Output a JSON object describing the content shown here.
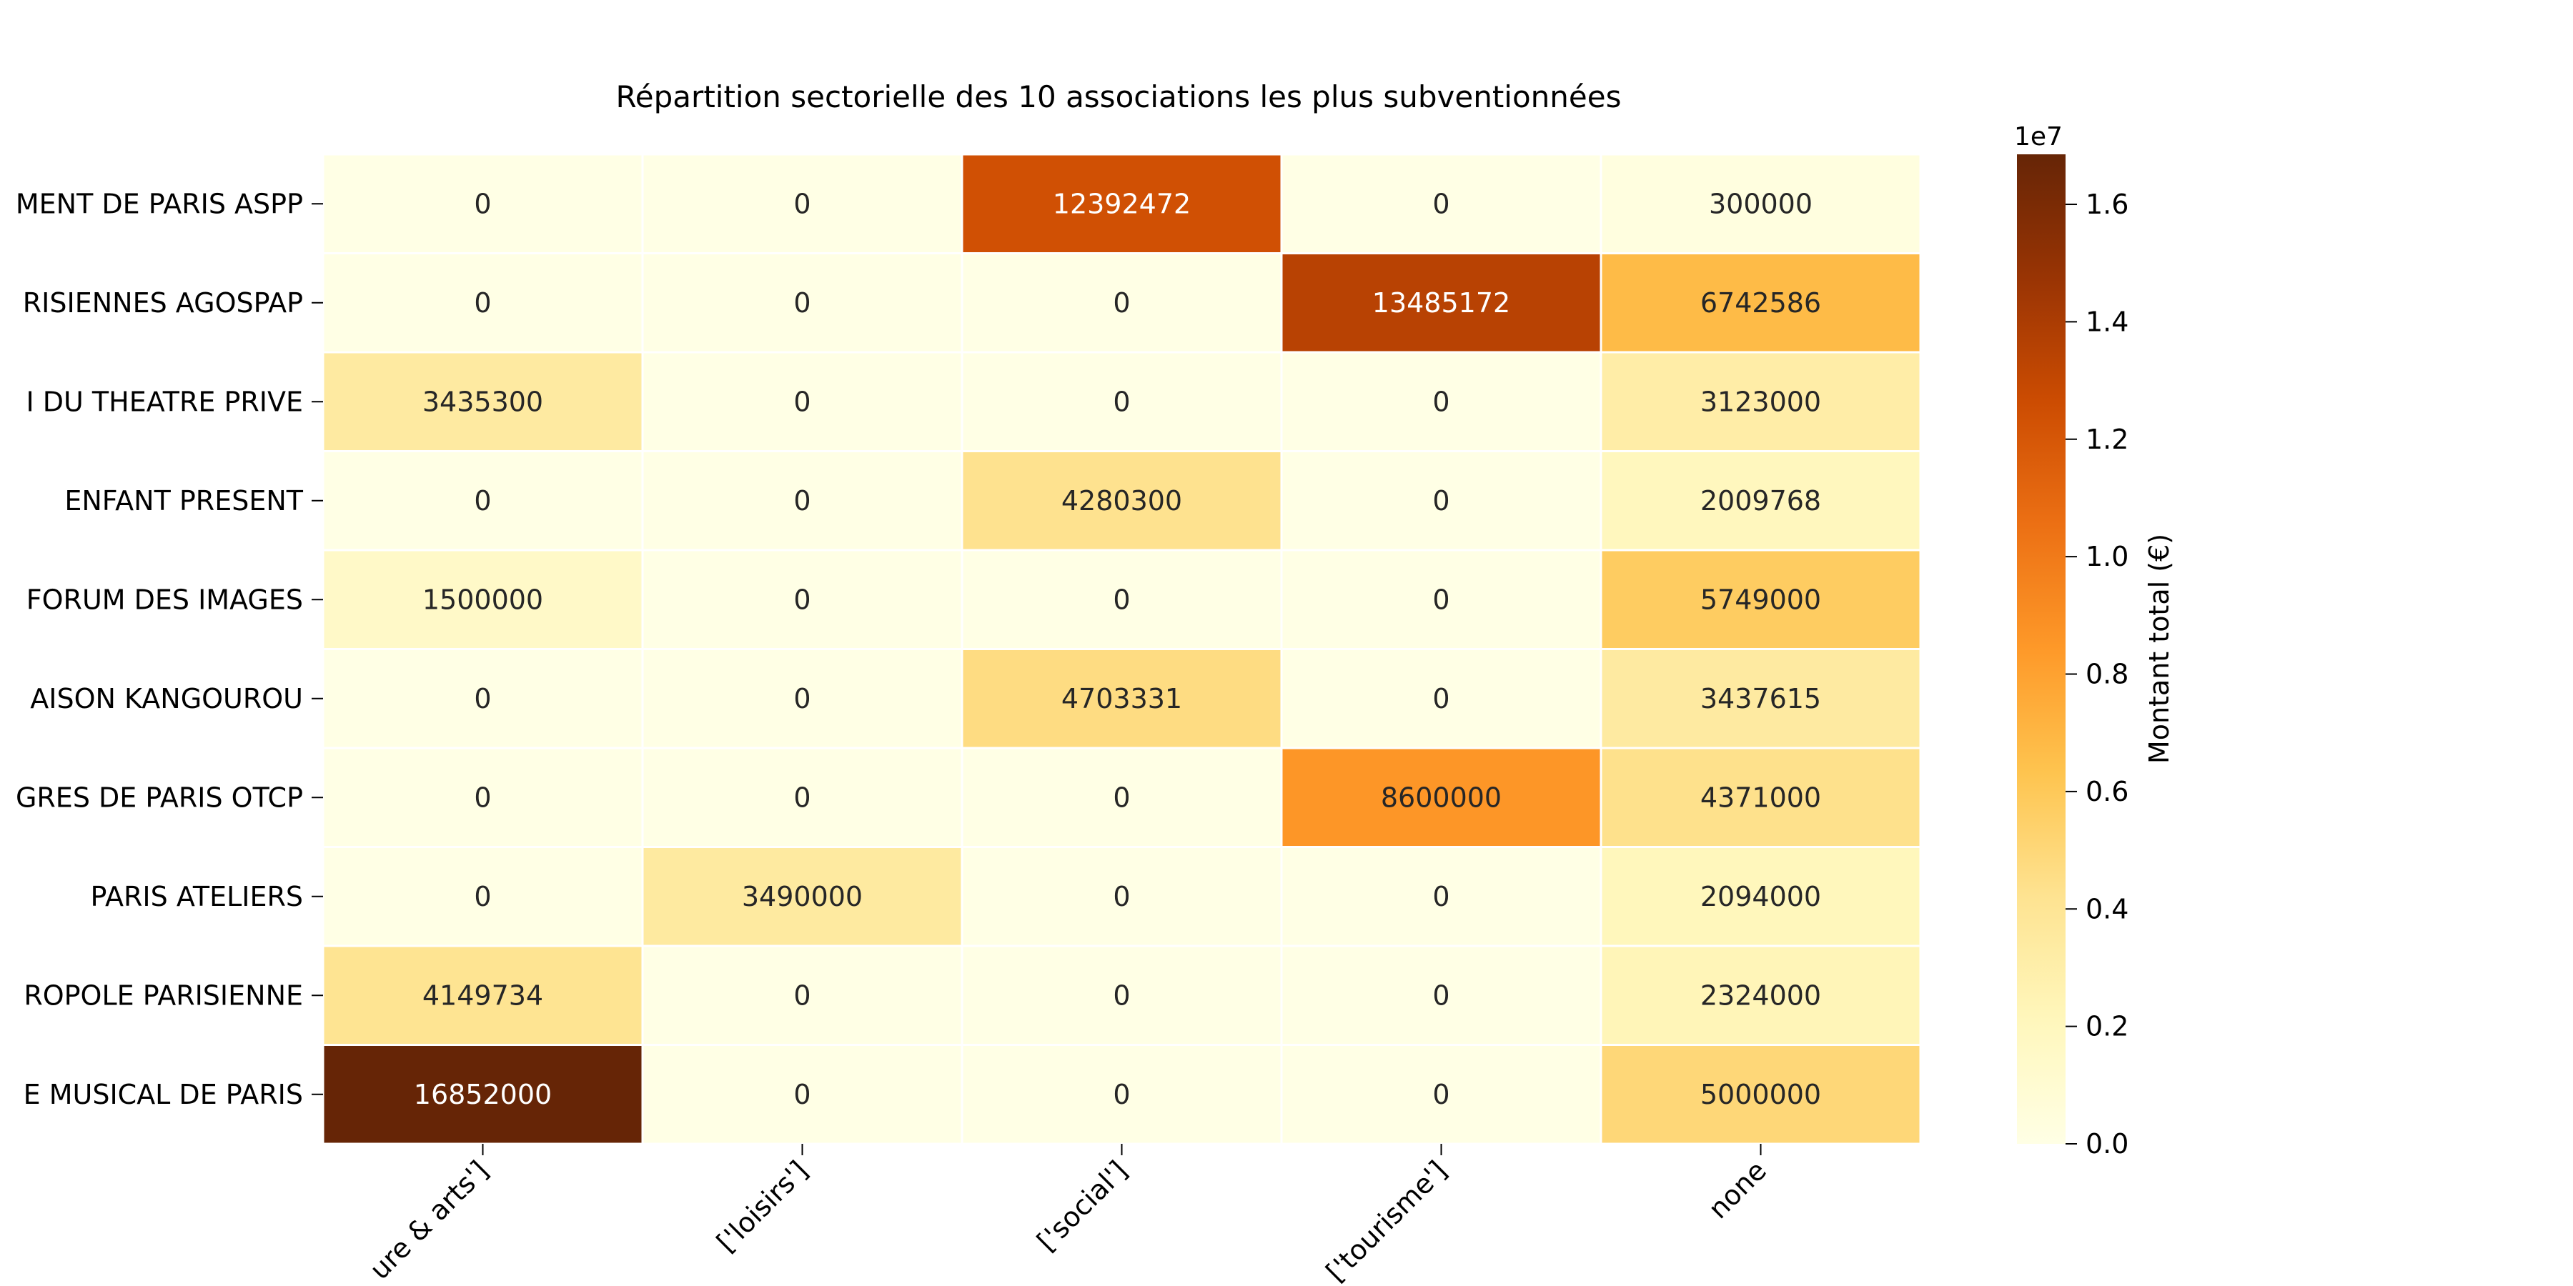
{
  "chart_data": {
    "type": "heatmap",
    "title": "Répartition sectorielle des 10 associations les plus subventionnées",
    "rows": [
      "MENT DE PARIS ASPP",
      "RISIENNES AGOSPAP",
      "I DU THEATRE PRIVE",
      "ENFANT PRESENT",
      "FORUM DES IMAGES",
      "AISON KANGOUROU",
      "GRES DE PARIS OTCP",
      "PARIS ATELIERS",
      "ROPOLE PARISIENNE",
      "E MUSICAL DE PARIS"
    ],
    "columns": [
      "ure & arts']",
      "['loisirs']",
      "['social']",
      "['tourisme']",
      "none"
    ],
    "values": [
      [
        0,
        0,
        12392472,
        0,
        300000
      ],
      [
        0,
        0,
        0,
        13485172,
        6742586
      ],
      [
        3435300,
        0,
        0,
        0,
        3123000
      ],
      [
        0,
        0,
        4280300,
        0,
        2009768
      ],
      [
        1500000,
        0,
        0,
        0,
        5749000
      ],
      [
        0,
        0,
        4703331,
        0,
        3437615
      ],
      [
        0,
        0,
        0,
        8600000,
        4371000
      ],
      [
        0,
        3490000,
        0,
        0,
        2094000
      ],
      [
        4149734,
        0,
        0,
        0,
        2324000
      ],
      [
        16852000,
        0,
        0,
        0,
        5000000
      ]
    ],
    "colorbar": {
      "label": "Montant total (€)",
      "multiplier": "1e7",
      "range": [
        0,
        16852000
      ],
      "ticks": [
        0.0,
        0.2,
        0.4,
        0.6,
        0.8,
        1.0,
        1.2,
        1.4,
        1.6
      ],
      "colormap": "YlOrBr"
    }
  }
}
